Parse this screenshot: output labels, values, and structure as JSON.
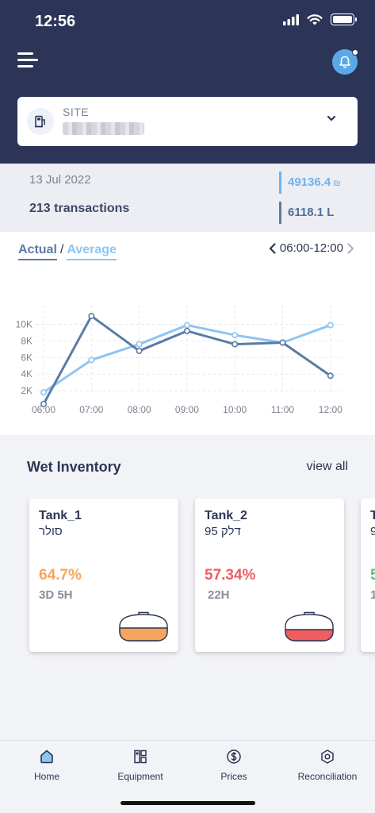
{
  "status": {
    "time": "12:56"
  },
  "site": {
    "label": "SITE"
  },
  "summary": {
    "date": "13 Jul 2022",
    "transactions": "213 transactions",
    "amount": "49136.4",
    "currency": "₪",
    "volume": "6118.1 L"
  },
  "chart": {
    "toggle_actual": "Actual",
    "toggle_separator": "/",
    "toggle_average": "Average",
    "range": "06:00-12:00"
  },
  "chart_data": {
    "type": "line",
    "categories": [
      "06:00",
      "07:00",
      "08:00",
      "09:00",
      "10:00",
      "11:00",
      "12:00"
    ],
    "y_ticks": [
      "2K",
      "4K",
      "6K",
      "8K",
      "10K"
    ],
    "ylim": [
      0,
      11000
    ],
    "grid": true,
    "series": [
      {
        "color": "#5b7ba5",
        "values": [
          400,
          11000,
          6800,
          9200,
          7600,
          7800,
          3800
        ]
      },
      {
        "color": "#8ec5f2",
        "values": [
          1800,
          5700,
          7600,
          9900,
          8700,
          7800,
          9900
        ]
      }
    ]
  },
  "inventory": {
    "title": "Wet Inventory",
    "view_all": "view all",
    "tanks": [
      {
        "name": "Tank_1",
        "fuel": "סולר",
        "percent": "64.7%",
        "level": 0.647,
        "time": "3D 5H",
        "color": "#f6a65b"
      },
      {
        "name": "Tank_2",
        "fuel": "95 דלק",
        "percent": "57.34%",
        "level": 0.5734,
        "time": "22H",
        "color": "#ef5d61"
      },
      {
        "name": "T",
        "fuel": "9",
        "percent": "5",
        "time": "1",
        "color": "#5cbf75"
      }
    ]
  },
  "tabs": [
    {
      "label": "Home",
      "icon": "home-icon"
    },
    {
      "label": "Equipment",
      "icon": "equipment-icon"
    },
    {
      "label": "Prices",
      "icon": "dollar-icon"
    },
    {
      "label": "Reconciliation",
      "icon": "reconciliation-icon"
    }
  ],
  "colors": {
    "header": "#2c3558",
    "accent": "#5aa9e6"
  }
}
